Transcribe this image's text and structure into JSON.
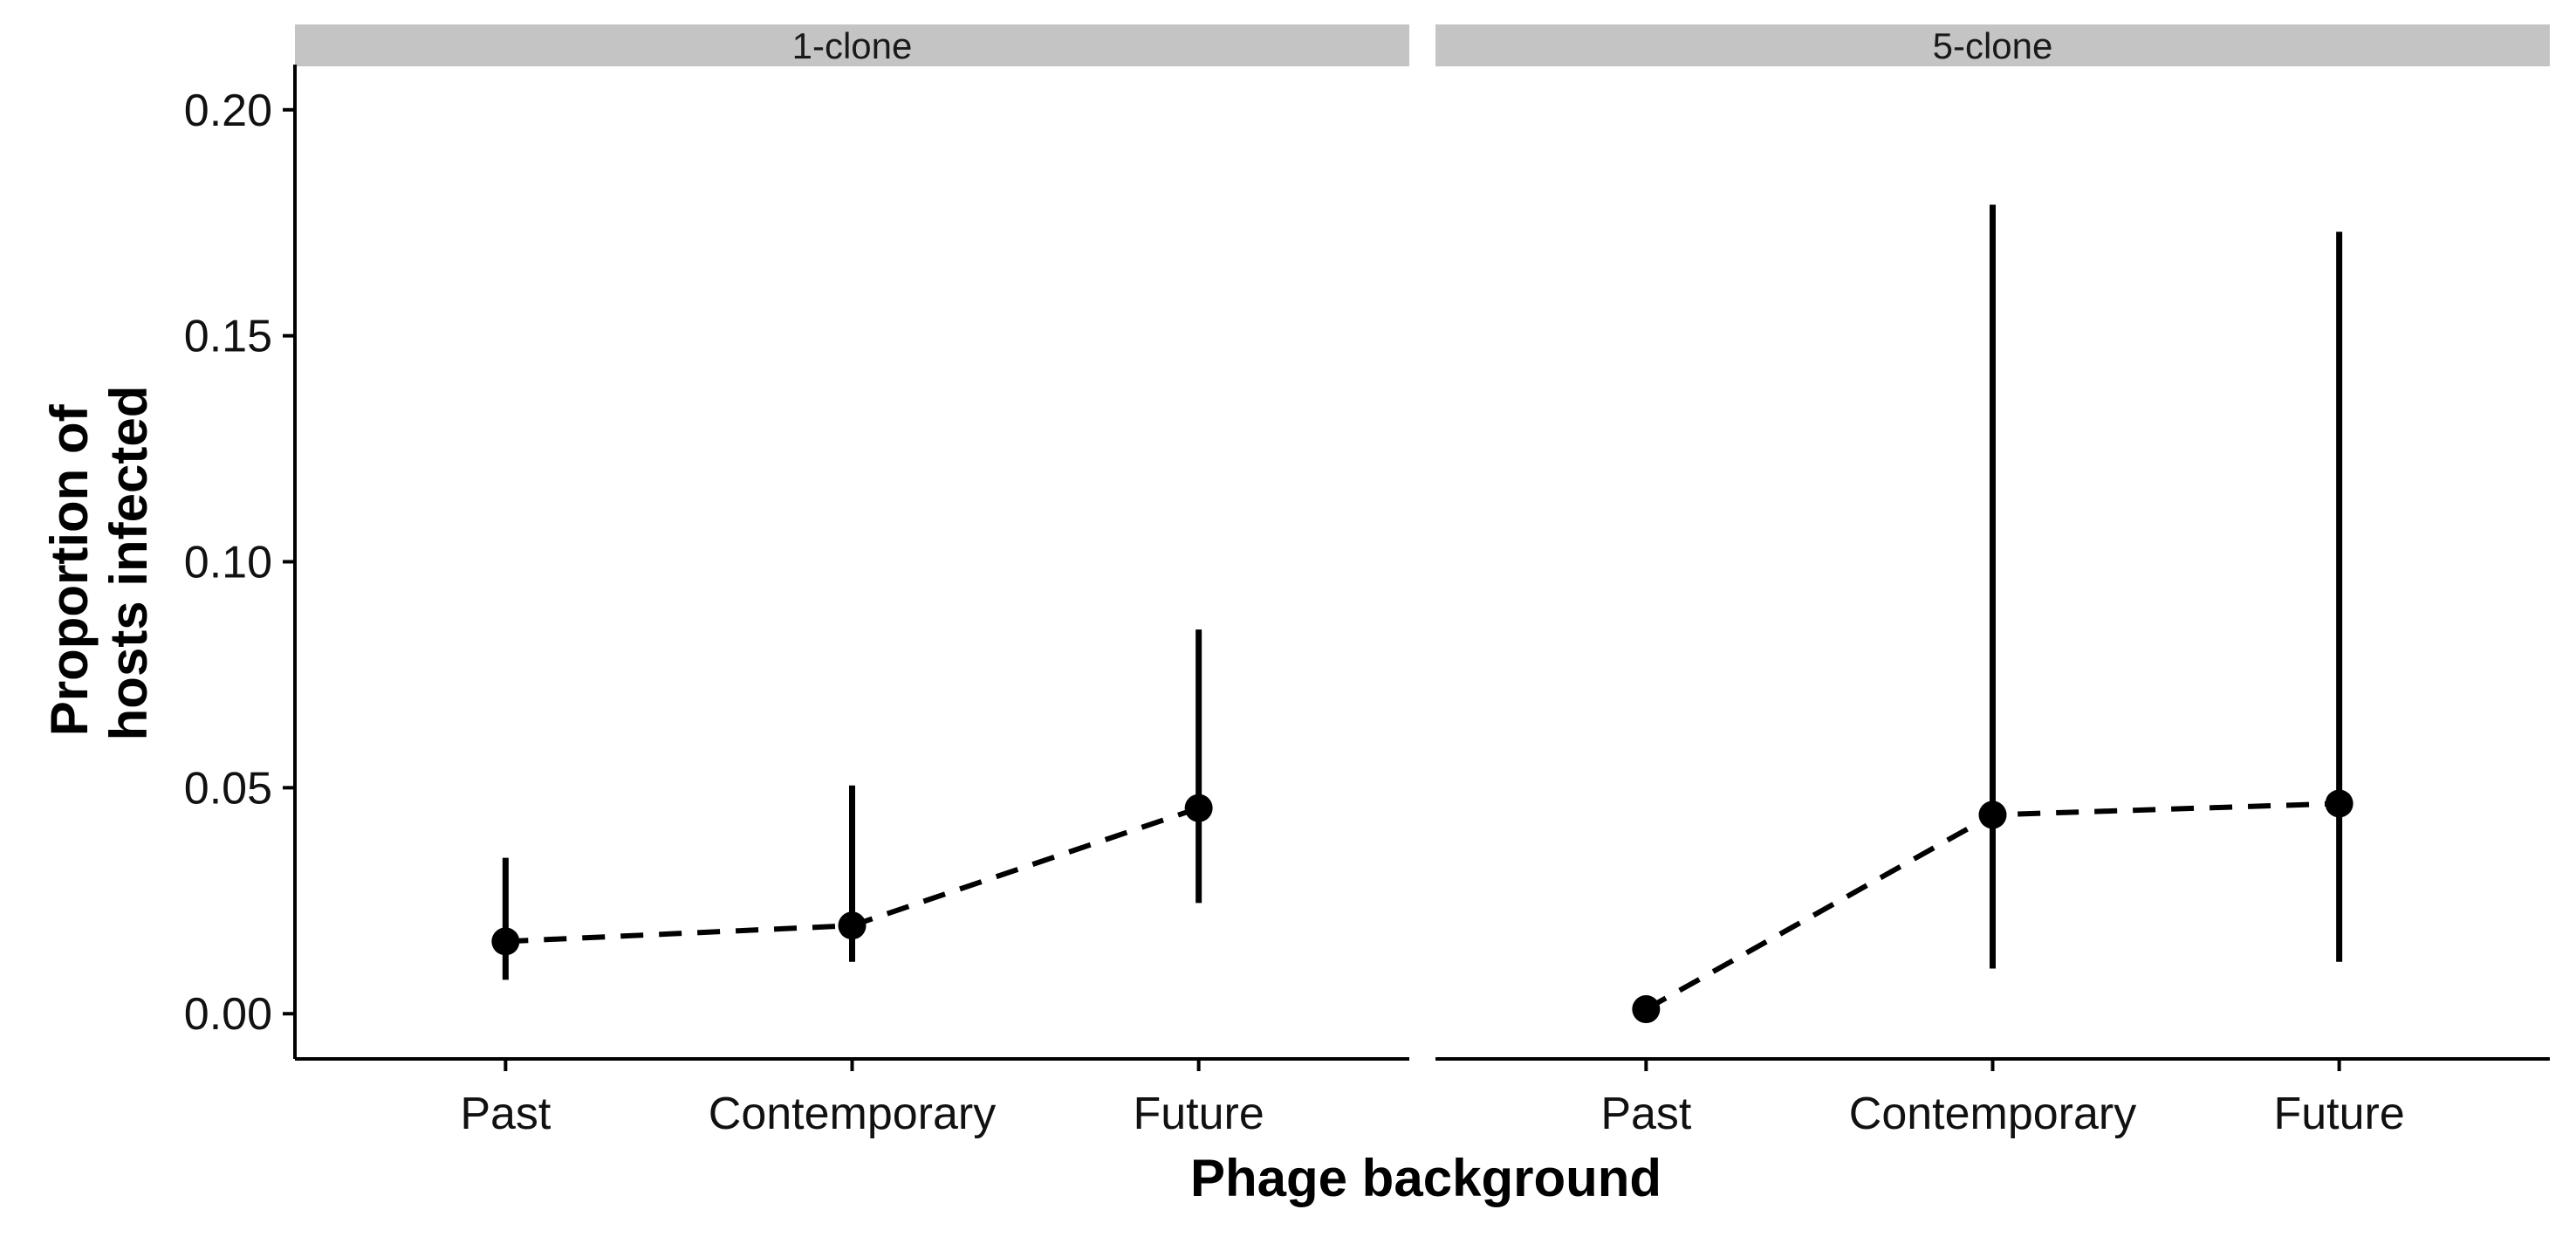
{
  "chart_data": {
    "type": "scatter",
    "xlabel": "Phage background",
    "ylabel_lines": [
      "Proportion of",
      "hosts infected"
    ],
    "categories": [
      "Past",
      "Contemporary",
      "Future"
    ],
    "ylim": [
      -0.01,
      0.21
    ],
    "yticks": [
      0.0,
      0.05,
      0.1,
      0.15,
      0.2
    ],
    "ytick_labels": [
      "0.00",
      "0.05",
      "0.10",
      "0.15",
      "0.20"
    ],
    "grid": false,
    "legend": "none",
    "colors": {
      "point": "#000000",
      "strip": "#c4c4c4",
      "axis": "#000000"
    },
    "panels": [
      {
        "name": "1-clone",
        "points": [
          {
            "x": "Past",
            "y": 0.016,
            "lower": 0.0075,
            "upper": 0.0345
          },
          {
            "x": "Contemporary",
            "y": 0.0195,
            "lower": 0.0115,
            "upper": 0.0505
          },
          {
            "x": "Future",
            "y": 0.0455,
            "lower": 0.0245,
            "upper": 0.085
          }
        ]
      },
      {
        "name": "5-clone",
        "points": [
          {
            "x": "Past",
            "y": 0.001,
            "lower": 0.0005,
            "upper": 0.0025
          },
          {
            "x": "Contemporary",
            "y": 0.044,
            "lower": 0.01,
            "upper": 0.179
          },
          {
            "x": "Future",
            "y": 0.0465,
            "lower": 0.0115,
            "upper": 0.173
          }
        ]
      }
    ]
  }
}
